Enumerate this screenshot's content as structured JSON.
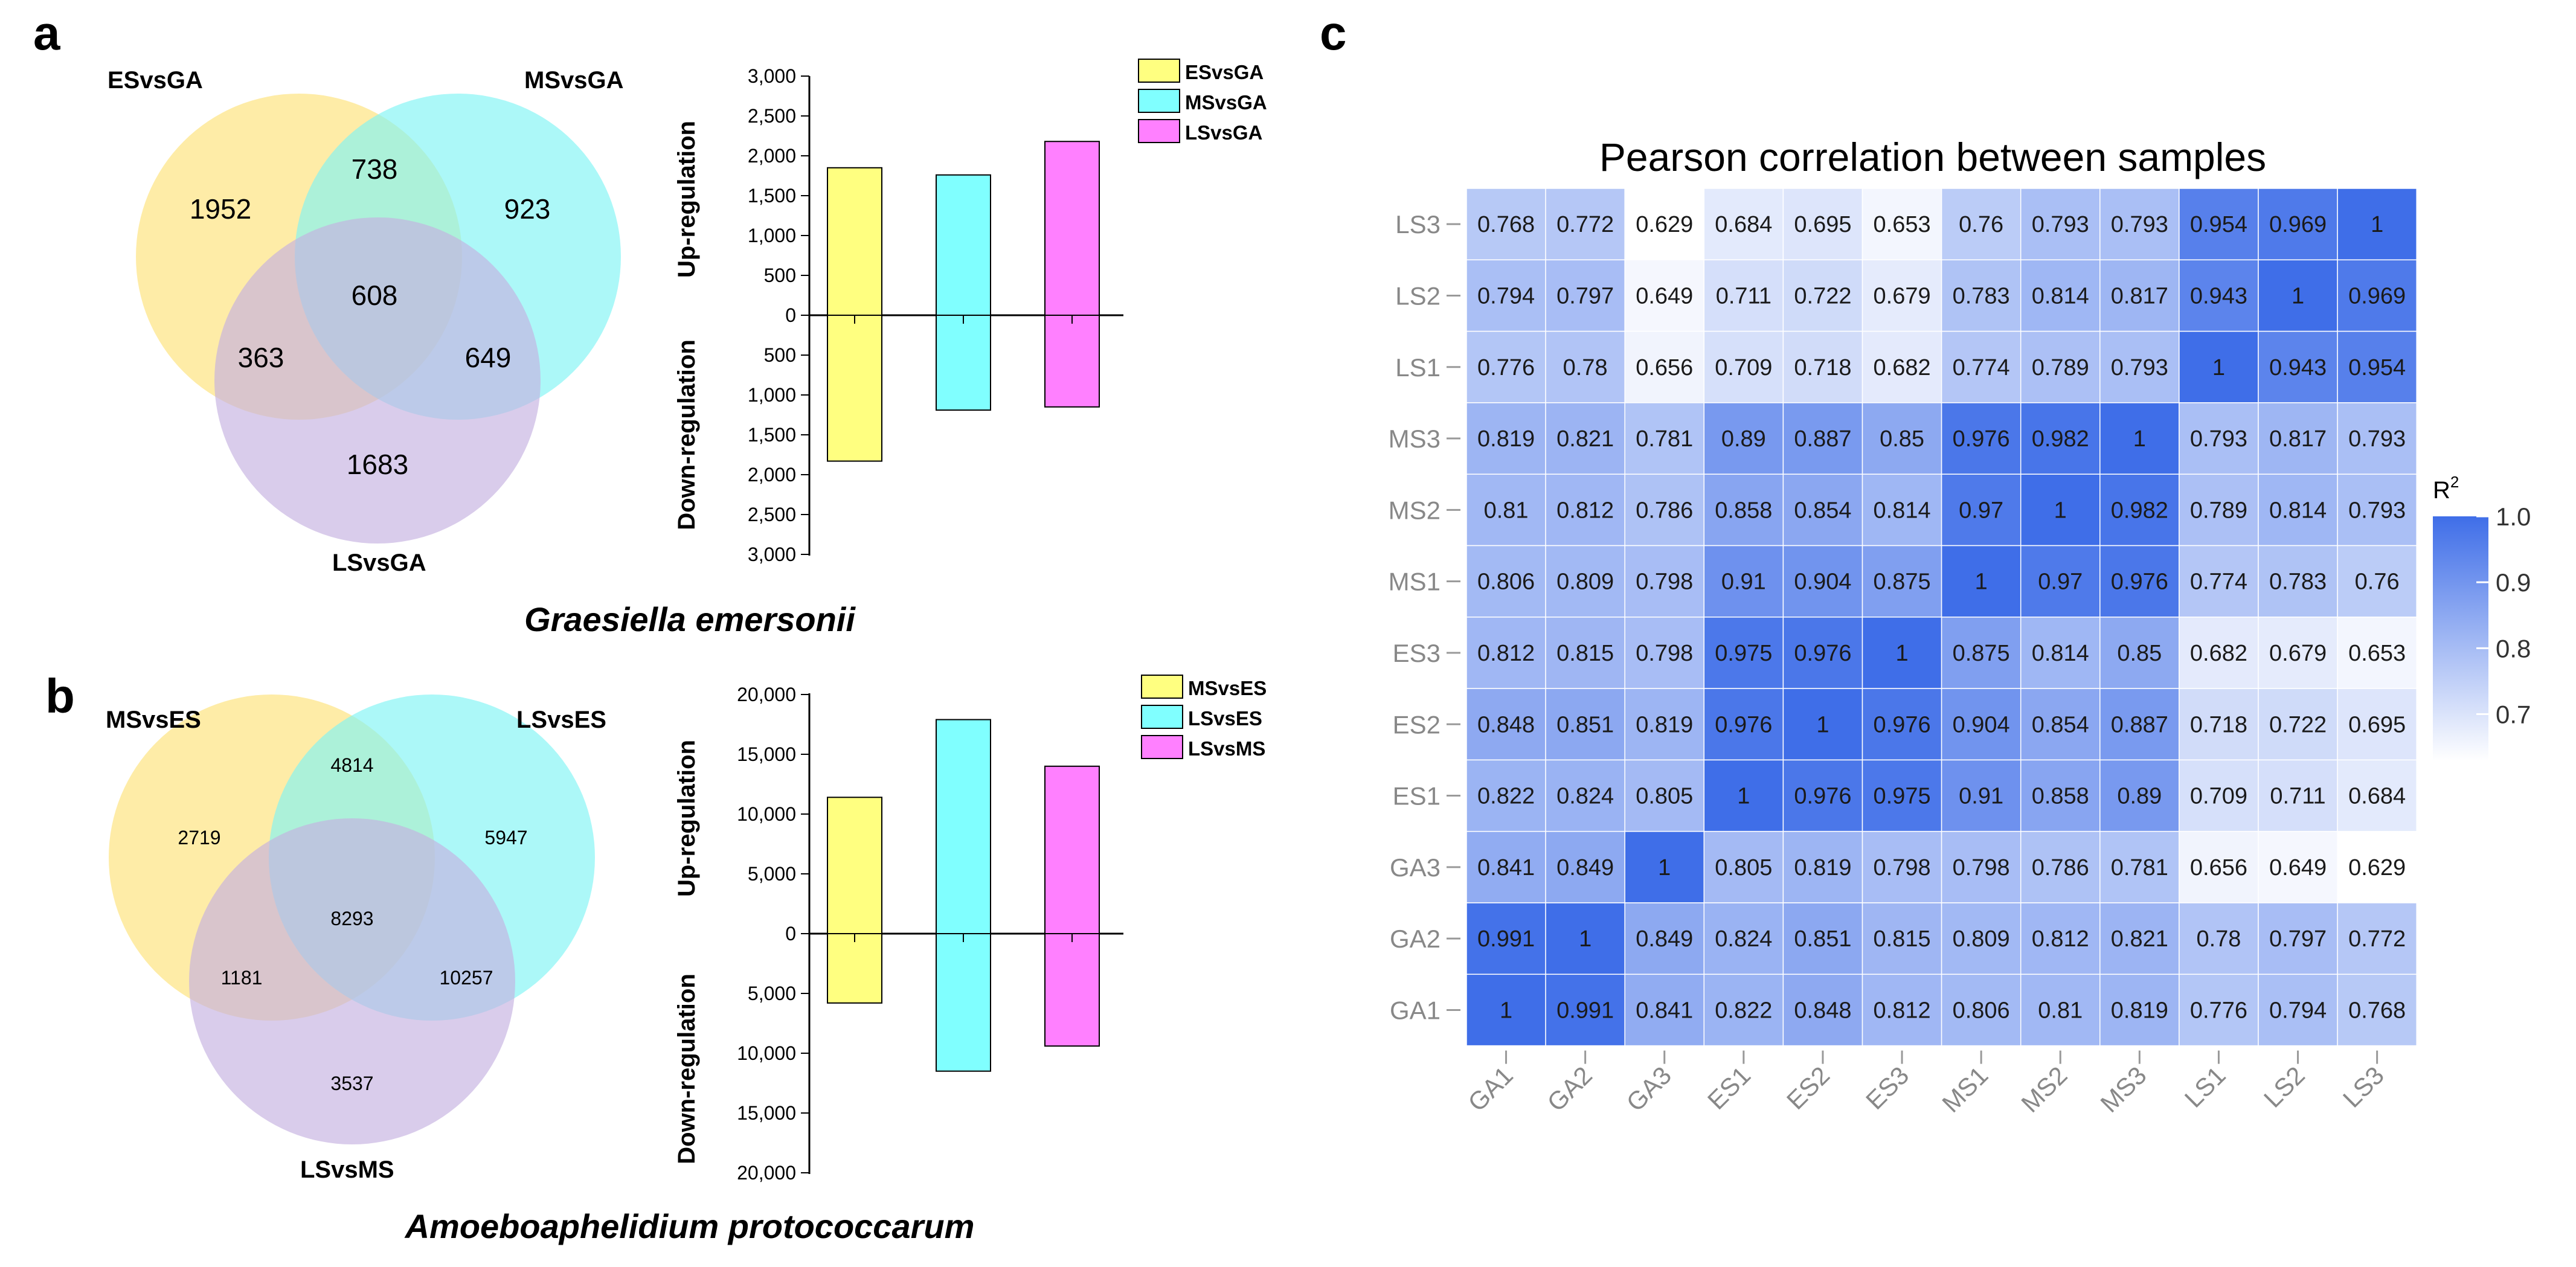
{
  "panels": {
    "a": "a",
    "b": "b",
    "c": "c"
  },
  "panel_a": {
    "venn": {
      "sets": [
        {
          "name": "ESvsGA",
          "color": "#fde68a"
        },
        {
          "name": "MSvsGA",
          "color": "#7ff5f5"
        },
        {
          "name": "LSvsGA",
          "color": "#c4b0e0"
        }
      ],
      "regions": {
        "only_1": "1952",
        "only_2": "923",
        "only_3": "1683",
        "r12": "738",
        "r13": "363",
        "r23": "649",
        "r123": "608"
      }
    },
    "bar": {
      "legend": [
        {
          "name": "ESvsGA",
          "color": "#ffff80"
        },
        {
          "name": "MSvsGA",
          "color": "#80ffff"
        },
        {
          "name": "LSvsGA",
          "color": "#ff80ff"
        }
      ],
      "ylabel_up": "Up-regulation",
      "ylabel_down": "Down-regulation",
      "ticks": [
        "3,000",
        "2,500",
        "2,000",
        "1,500",
        "1,000",
        "500",
        "0",
        "500",
        "1,000",
        "1,500",
        "2,000",
        "2,500",
        "3,000"
      ],
      "max": 3000
    },
    "species": "Graesiella emersonii"
  },
  "panel_b": {
    "venn": {
      "sets": [
        {
          "name": "MSvsES",
          "color": "#fde68a"
        },
        {
          "name": "LSvsES",
          "color": "#7ff5f5"
        },
        {
          "name": "LSvsMS",
          "color": "#c4b0e0"
        }
      ],
      "regions": {
        "only_1": "2719",
        "only_2": "5947",
        "only_3": "3537",
        "r12": "4814",
        "r13": "1181",
        "r23": "10257",
        "r123": "8293"
      }
    },
    "bar": {
      "legend": [
        {
          "name": "MSvsES",
          "color": "#ffff80"
        },
        {
          "name": "LSvsES",
          "color": "#80ffff"
        },
        {
          "name": "LSvsMS",
          "color": "#ff80ff"
        }
      ],
      "ylabel_up": "Up-regulation",
      "ylabel_down": "Down-regulation",
      "ticks": [
        "20,000",
        "15,000",
        "10,000",
        "5,000",
        "0",
        "5,000",
        "10,000",
        "15,000",
        "20,000"
      ],
      "max": 20000
    },
    "species": "Amoeboaphelidium protococcarum"
  },
  "panel_c": {
    "title": "Pearson correlation between samples",
    "colorbar_title": "R",
    "colorbar_sup": "2",
    "colorbar_ticks": [
      "1.0",
      "0.9",
      "0.8",
      "0.7"
    ],
    "colors": {
      "low": "#ffffff",
      "high": "#3f6ee8"
    }
  },
  "chart_data": [
    {
      "type": "bar",
      "panel": "a",
      "title": "",
      "categories": [
        "ESvsGA",
        "MSvsGA",
        "LSvsGA"
      ],
      "series": [
        {
          "name": "Up-regulation",
          "values": [
            1850,
            1760,
            2180
          ]
        },
        {
          "name": "Down-regulation",
          "values": [
            1830,
            1190,
            1150
          ]
        }
      ],
      "ylim": [
        -3000,
        3000
      ],
      "ylabel": "Up-regulation / Down-regulation"
    },
    {
      "type": "bar",
      "panel": "b",
      "title": "",
      "categories": [
        "MSvsES",
        "LSvsES",
        "LSvsMS"
      ],
      "series": [
        {
          "name": "Up-regulation",
          "values": [
            11400,
            17900,
            14000
          ]
        },
        {
          "name": "Down-regulation",
          "values": [
            5800,
            11500,
            9400
          ]
        }
      ],
      "ylim": [
        -20000,
        20000
      ],
      "ylabel": "Up-regulation / Down-regulation"
    },
    {
      "type": "heatmap",
      "panel": "c",
      "title": "Pearson correlation between samples",
      "x": [
        "GA1",
        "GA2",
        "GA3",
        "ES1",
        "ES2",
        "ES3",
        "MS1",
        "MS2",
        "MS3",
        "LS1",
        "LS2",
        "LS3"
      ],
      "y": [
        "LS3",
        "LS2",
        "LS1",
        "MS3",
        "MS2",
        "MS1",
        "ES3",
        "ES2",
        "ES1",
        "GA3",
        "GA2",
        "GA1"
      ],
      "value_range": [
        0.629,
        1.0
      ],
      "values": [
        [
          "0.768",
          "0.772",
          "0.629",
          "0.684",
          "0.695",
          "0.653",
          "0.76",
          "0.793",
          "0.793",
          "0.954",
          "0.969",
          "1"
        ],
        [
          "0.794",
          "0.797",
          "0.649",
          "0.711",
          "0.722",
          "0.679",
          "0.783",
          "0.814",
          "0.817",
          "0.943",
          "1",
          "0.969"
        ],
        [
          "0.776",
          "0.78",
          "0.656",
          "0.709",
          "0.718",
          "0.682",
          "0.774",
          "0.789",
          "0.793",
          "1",
          "0.943",
          "0.954"
        ],
        [
          "0.819",
          "0.821",
          "0.781",
          "0.89",
          "0.887",
          "0.85",
          "0.976",
          "0.982",
          "1",
          "0.793",
          "0.817",
          "0.793"
        ],
        [
          "0.81",
          "0.812",
          "0.786",
          "0.858",
          "0.854",
          "0.814",
          "0.97",
          "1",
          "0.982",
          "0.789",
          "0.814",
          "0.793"
        ],
        [
          "0.806",
          "0.809",
          "0.798",
          "0.91",
          "0.904",
          "0.875",
          "1",
          "0.97",
          "0.976",
          "0.774",
          "0.783",
          "0.76"
        ],
        [
          "0.812",
          "0.815",
          "0.798",
          "0.975",
          "0.976",
          "1",
          "0.875",
          "0.814",
          "0.85",
          "0.682",
          "0.679",
          "0.653"
        ],
        [
          "0.848",
          "0.851",
          "0.819",
          "0.976",
          "1",
          "0.976",
          "0.904",
          "0.854",
          "0.887",
          "0.718",
          "0.722",
          "0.695"
        ],
        [
          "0.822",
          "0.824",
          "0.805",
          "1",
          "0.976",
          "0.975",
          "0.91",
          "0.858",
          "0.89",
          "0.709",
          "0.711",
          "0.684"
        ],
        [
          "0.841",
          "0.849",
          "1",
          "0.805",
          "0.819",
          "0.798",
          "0.798",
          "0.786",
          "0.781",
          "0.656",
          "0.649",
          "0.629"
        ],
        [
          "0.991",
          "1",
          "0.849",
          "0.824",
          "0.851",
          "0.815",
          "0.809",
          "0.812",
          "0.821",
          "0.78",
          "0.797",
          "0.772"
        ],
        [
          "1",
          "0.991",
          "0.841",
          "0.822",
          "0.848",
          "0.812",
          "0.806",
          "0.81",
          "0.819",
          "0.776",
          "0.794",
          "0.768"
        ]
      ]
    }
  ]
}
